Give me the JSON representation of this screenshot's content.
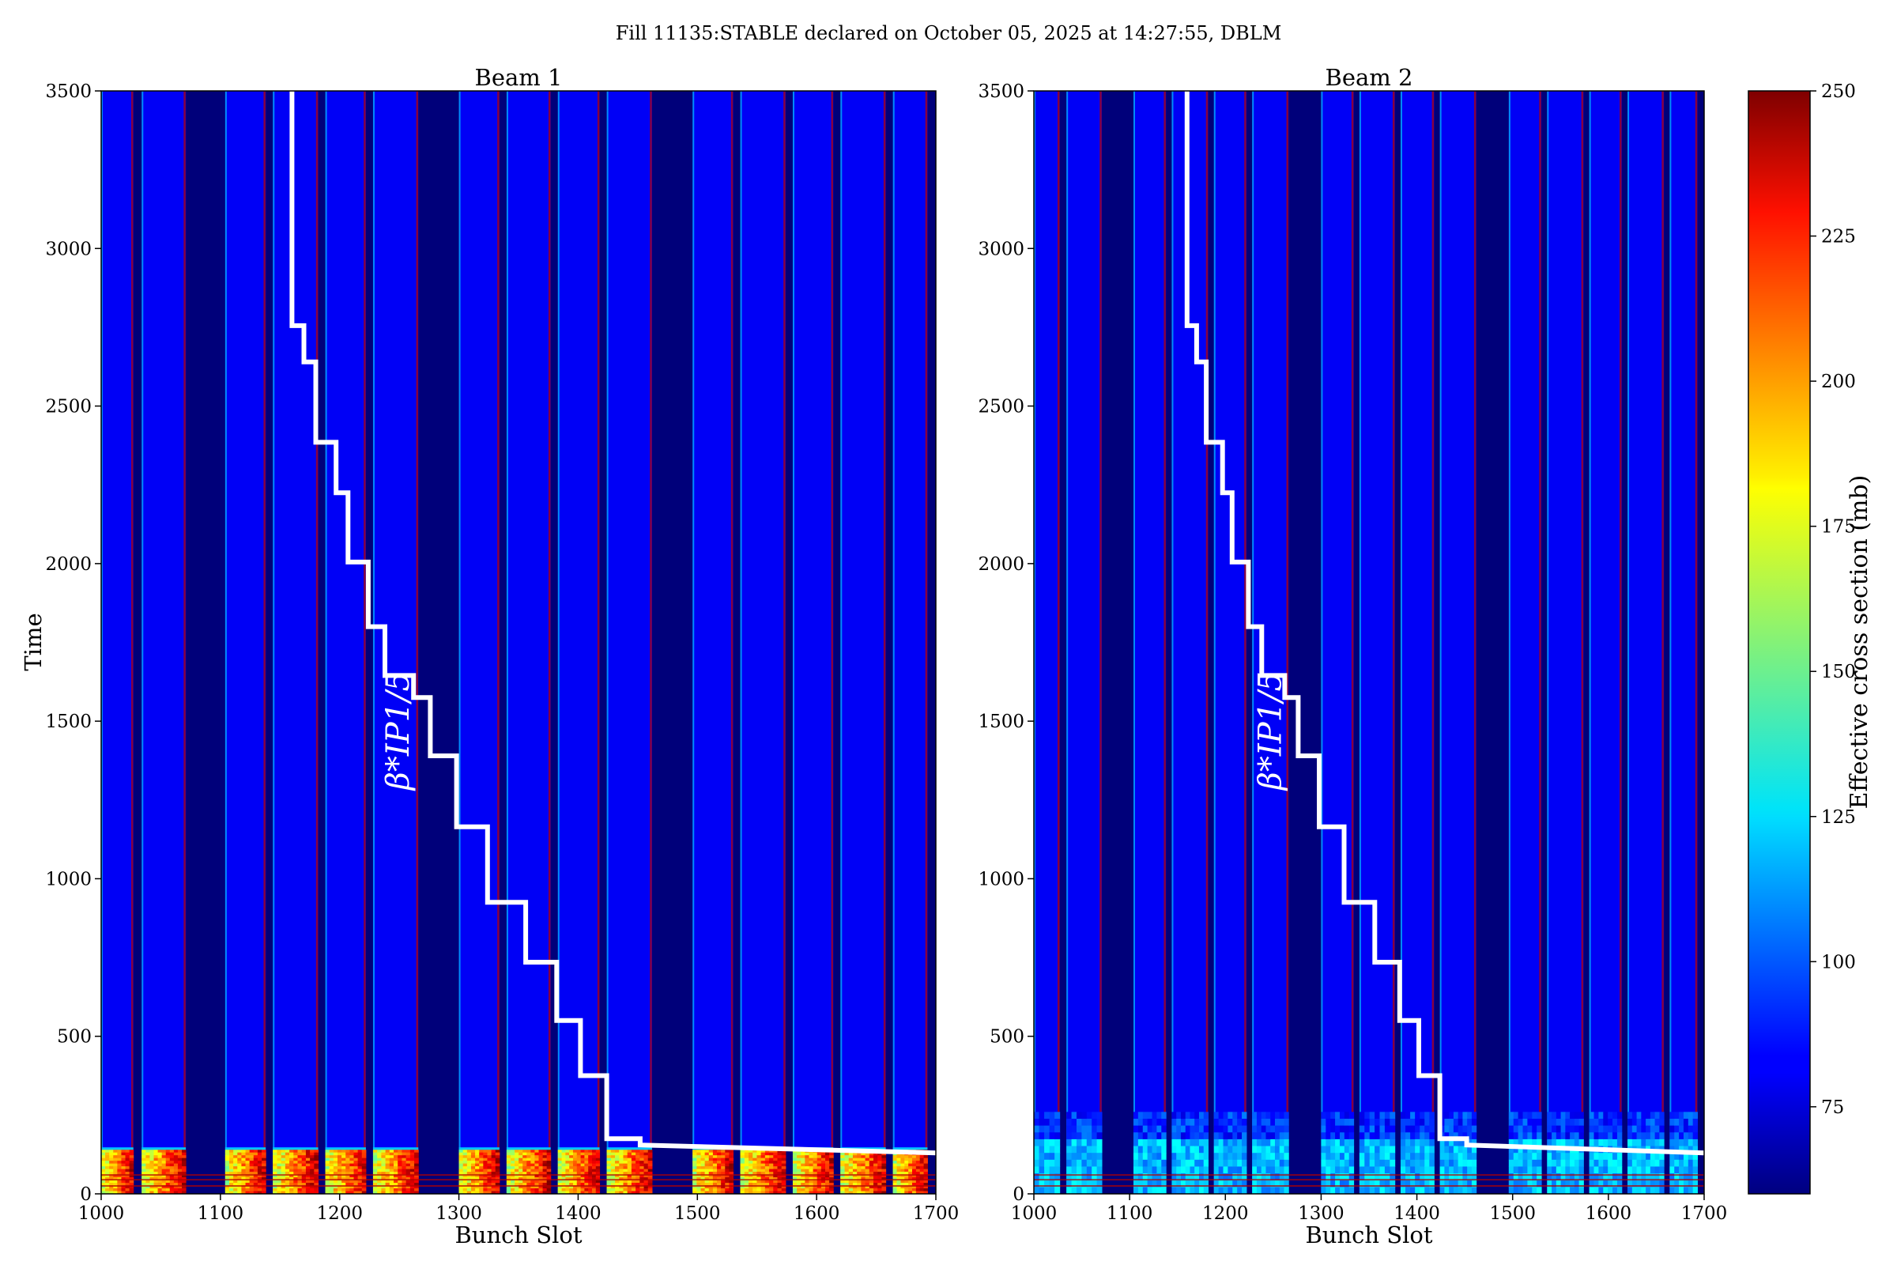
{
  "suptitle": "Fill 11135:STABLE declared on October 05, 2025 at 14:27:55, DBLM",
  "colorbar": {
    "label": "Effective cross section (mb)",
    "min": 60,
    "max": 250,
    "ticks": [
      75,
      100,
      125,
      150,
      175,
      200,
      225,
      250
    ],
    "colormap": "jet"
  },
  "colors": {
    "beam_gap": "#00007a",
    "filled_bunch": "#0a14ff",
    "train_edge": "#00c8ff",
    "hot_line": "#b40000",
    "step_line": "#ffffff"
  },
  "chart_data": [
    {
      "type": "heatmap",
      "title": "Beam 1",
      "xlabel": "Bunch Slot",
      "ylabel": "Time",
      "xlim": [
        1000,
        1700
      ],
      "ylim": [
        0,
        3500
      ],
      "xticks": [
        1000,
        1100,
        1200,
        1300,
        1400,
        1500,
        1600,
        1700
      ],
      "yticks": [
        0,
        500,
        1000,
        1500,
        2000,
        2500,
        3000,
        3500
      ],
      "annotation": "β*IP1/5",
      "filled_trains": [
        [
          1000,
          1027
        ],
        [
          1034,
          1071
        ],
        [
          1104,
          1138
        ],
        [
          1144,
          1182
        ],
        [
          1188,
          1222
        ],
        [
          1228,
          1266
        ],
        [
          1300,
          1334
        ],
        [
          1340,
          1377
        ],
        [
          1383,
          1418
        ],
        [
          1424,
          1462
        ],
        [
          1496,
          1530
        ],
        [
          1536,
          1574
        ],
        [
          1580,
          1614
        ],
        [
          1620,
          1658
        ],
        [
          1664,
          1693
        ]
      ],
      "early_hot_trains": [
        [
          1000,
          1027
        ],
        [
          1034,
          1071
        ],
        [
          1104,
          1138
        ],
        [
          1144,
          1182
        ],
        [
          1188,
          1222
        ],
        [
          1228,
          1266
        ],
        [
          1300,
          1334
        ],
        [
          1340,
          1377
        ],
        [
          1383,
          1418
        ],
        [
          1424,
          1462
        ],
        [
          1496,
          1530
        ],
        [
          1536,
          1574
        ],
        [
          1580,
          1614
        ],
        [
          1620,
          1658
        ],
        [
          1664,
          1693
        ]
      ],
      "early_period_end": 140,
      "early_level": 205,
      "steady_level": 82,
      "step_line": [
        [
          1160,
          3500
        ],
        [
          1160,
          2755
        ],
        [
          1170,
          2755
        ],
        [
          1170,
          2640
        ],
        [
          1180,
          2640
        ],
        [
          1180,
          2385
        ],
        [
          1197,
          2385
        ],
        [
          1197,
          2225
        ],
        [
          1207,
          2225
        ],
        [
          1207,
          2005
        ],
        [
          1224,
          2005
        ],
        [
          1224,
          1800
        ],
        [
          1238,
          1800
        ],
        [
          1238,
          1645
        ],
        [
          1262,
          1645
        ],
        [
          1262,
          1575
        ],
        [
          1276,
          1575
        ],
        [
          1276,
          1390
        ],
        [
          1298,
          1390
        ],
        [
          1298,
          1165
        ],
        [
          1324,
          1165
        ],
        [
          1324,
          925
        ],
        [
          1356,
          925
        ],
        [
          1356,
          735
        ],
        [
          1382,
          735
        ],
        [
          1382,
          550
        ],
        [
          1402,
          550
        ],
        [
          1402,
          375
        ],
        [
          1424,
          375
        ],
        [
          1424,
          175
        ],
        [
          1452,
          175
        ],
        [
          1452,
          155
        ],
        [
          1700,
          130
        ]
      ]
    },
    {
      "type": "heatmap",
      "title": "Beam 2",
      "xlabel": "Bunch Slot",
      "ylabel": "",
      "xlim": [
        1000,
        1700
      ],
      "ylim": [
        0,
        3500
      ],
      "xticks": [
        1000,
        1100,
        1200,
        1300,
        1400,
        1500,
        1600,
        1700
      ],
      "yticks": [
        0,
        500,
        1000,
        1500,
        2000,
        2500,
        3000,
        3500
      ],
      "annotation": "β*IP1/5",
      "filled_trains": [
        [
          1000,
          1027
        ],
        [
          1034,
          1071
        ],
        [
          1104,
          1138
        ],
        [
          1144,
          1182
        ],
        [
          1188,
          1222
        ],
        [
          1228,
          1266
        ],
        [
          1300,
          1334
        ],
        [
          1340,
          1377
        ],
        [
          1383,
          1418
        ],
        [
          1424,
          1462
        ],
        [
          1496,
          1530
        ],
        [
          1536,
          1574
        ],
        [
          1580,
          1614
        ],
        [
          1620,
          1658
        ],
        [
          1664,
          1693
        ]
      ],
      "early_hot_trains": [],
      "early_period_end": 260,
      "early_level": 118,
      "steady_level": 82,
      "step_line": [
        [
          1160,
          3500
        ],
        [
          1160,
          2755
        ],
        [
          1170,
          2755
        ],
        [
          1170,
          2640
        ],
        [
          1180,
          2640
        ],
        [
          1180,
          2385
        ],
        [
          1197,
          2385
        ],
        [
          1197,
          2225
        ],
        [
          1207,
          2225
        ],
        [
          1207,
          2005
        ],
        [
          1224,
          2005
        ],
        [
          1224,
          1800
        ],
        [
          1238,
          1800
        ],
        [
          1238,
          1645
        ],
        [
          1262,
          1645
        ],
        [
          1262,
          1575
        ],
        [
          1276,
          1575
        ],
        [
          1276,
          1390
        ],
        [
          1298,
          1390
        ],
        [
          1298,
          1165
        ],
        [
          1324,
          1165
        ],
        [
          1324,
          925
        ],
        [
          1356,
          925
        ],
        [
          1356,
          735
        ],
        [
          1382,
          735
        ],
        [
          1382,
          550
        ],
        [
          1402,
          550
        ],
        [
          1402,
          375
        ],
        [
          1424,
          375
        ],
        [
          1424,
          175
        ],
        [
          1452,
          175
        ],
        [
          1452,
          155
        ],
        [
          1700,
          130
        ]
      ]
    }
  ]
}
